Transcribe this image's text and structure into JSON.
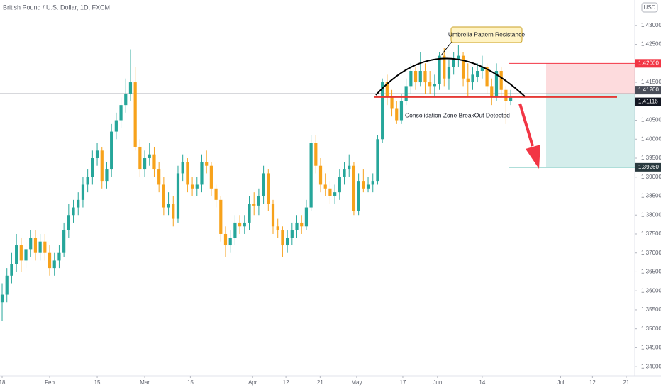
{
  "chart_data": {
    "type": "candlestick",
    "title": "British Pound / U.S. Dollar, 1D, FXCM",
    "currency": "USD",
    "up_color": "#26a69a",
    "down_color": "#f7a21b",
    "ylim": [
      1.3376,
      1.4367
    ],
    "yticks": [
      {
        "value": 1.43,
        "label": "1.43000"
      },
      {
        "value": 1.425,
        "label": "1.42500"
      },
      {
        "value": 1.415,
        "label": "1.41500"
      },
      {
        "value": 1.405,
        "label": "1.40500"
      },
      {
        "value": 1.4,
        "label": "1.40000"
      },
      {
        "value": 1.395,
        "label": "1.39500"
      },
      {
        "value": 1.39,
        "label": "1.39000"
      },
      {
        "value": 1.385,
        "label": "1.38500"
      },
      {
        "value": 1.38,
        "label": "1.38000"
      },
      {
        "value": 1.375,
        "label": "1.37500"
      },
      {
        "value": 1.37,
        "label": "1.37000"
      },
      {
        "value": 1.365,
        "label": "1.36500"
      },
      {
        "value": 1.36,
        "label": "1.36000"
      },
      {
        "value": 1.355,
        "label": "1.35500"
      },
      {
        "value": 1.35,
        "label": "1.35000"
      },
      {
        "value": 1.345,
        "label": "1.34500"
      },
      {
        "value": 1.34,
        "label": "1.34000"
      }
    ],
    "xlim": [
      -0.45,
      133.1
    ],
    "xticks": [
      {
        "value": 0,
        "label": "18"
      },
      {
        "value": 10,
        "label": "Feb"
      },
      {
        "value": 20,
        "label": "15"
      },
      {
        "value": 30,
        "label": "Mar"
      },
      {
        "value": 39.6,
        "label": "15"
      },
      {
        "value": 52.7,
        "label": "Apr"
      },
      {
        "value": 59.7,
        "label": "12"
      },
      {
        "value": 66.9,
        "label": "21"
      },
      {
        "value": 74.6,
        "label": "May"
      },
      {
        "value": 84.3,
        "label": "17"
      },
      {
        "value": 91.6,
        "label": "Jun"
      },
      {
        "value": 101,
        "label": "14"
      },
      {
        "value": 117.5,
        "label": "Jul"
      },
      {
        "value": 124.2,
        "label": "12"
      },
      {
        "value": 131.3,
        "label": "21"
      }
    ],
    "grid": false,
    "ohlc": [
      [
        1.357,
        1.362,
        1.352,
        1.359
      ],
      [
        1.359,
        1.366,
        1.357,
        1.364
      ],
      [
        1.364,
        1.37,
        1.362,
        1.367
      ],
      [
        1.367,
        1.375,
        1.365,
        1.372
      ],
      [
        1.372,
        1.374,
        1.365,
        1.368
      ],
      [
        1.368,
        1.373,
        1.366,
        1.371
      ],
      [
        1.371,
        1.376,
        1.369,
        1.374
      ],
      [
        1.374,
        1.376,
        1.368,
        1.37
      ],
      [
        1.37,
        1.375,
        1.368,
        1.373
      ],
      [
        1.373,
        1.375,
        1.368,
        1.37
      ],
      [
        1.37,
        1.372,
        1.364,
        1.366
      ],
      [
        1.366,
        1.37,
        1.364,
        1.368
      ],
      [
        1.368,
        1.372,
        1.366,
        1.37
      ],
      [
        1.37,
        1.378,
        1.369,
        1.376
      ],
      [
        1.376,
        1.383,
        1.374,
        1.38
      ],
      [
        1.38,
        1.384,
        1.378,
        1.382
      ],
      [
        1.382,
        1.386,
        1.38,
        1.384
      ],
      [
        1.384,
        1.39,
        1.382,
        1.388
      ],
      [
        1.388,
        1.392,
        1.386,
        1.39
      ],
      [
        1.39,
        1.397,
        1.388,
        1.395
      ],
      [
        1.395,
        1.399,
        1.393,
        1.397
      ],
      [
        1.397,
        1.398,
        1.387,
        1.389
      ],
      [
        1.389,
        1.394,
        1.387,
        1.392
      ],
      [
        1.392,
        1.404,
        1.39,
        1.402
      ],
      [
        1.402,
        1.407,
        1.4,
        1.405
      ],
      [
        1.405,
        1.411,
        1.403,
        1.409
      ],
      [
        1.409,
        1.416,
        1.407,
        1.412
      ],
      [
        1.412,
        1.4237,
        1.41,
        1.415
      ],
      [
        1.415,
        1.419,
        1.397,
        1.398
      ],
      [
        1.398,
        1.4,
        1.39,
        1.392
      ],
      [
        1.392,
        1.397,
        1.39,
        1.395
      ],
      [
        1.395,
        1.399,
        1.393,
        1.396
      ],
      [
        1.396,
        1.398,
        1.39,
        1.392
      ],
      [
        1.392,
        1.394,
        1.386,
        1.388
      ],
      [
        1.388,
        1.39,
        1.38,
        1.382
      ],
      [
        1.382,
        1.386,
        1.38,
        1.383
      ],
      [
        1.383,
        1.385,
        1.377,
        1.379
      ],
      [
        1.379,
        1.393,
        1.378,
        1.391
      ],
      [
        1.391,
        1.396,
        1.389,
        1.394
      ],
      [
        1.394,
        1.395,
        1.386,
        1.388
      ],
      [
        1.388,
        1.39,
        1.385,
        1.387
      ],
      [
        1.387,
        1.39,
        1.385,
        1.388
      ],
      [
        1.388,
        1.396,
        1.386,
        1.394
      ],
      [
        1.394,
        1.397,
        1.391,
        1.393
      ],
      [
        1.393,
        1.394,
        1.385,
        1.387
      ],
      [
        1.387,
        1.388,
        1.382,
        1.384
      ],
      [
        1.384,
        1.385,
        1.373,
        1.375
      ],
      [
        1.375,
        1.377,
        1.369,
        1.372
      ],
      [
        1.372,
        1.376,
        1.37,
        1.374
      ],
      [
        1.374,
        1.38,
        1.372,
        1.378
      ],
      [
        1.378,
        1.38,
        1.375,
        1.377
      ],
      [
        1.377,
        1.38,
        1.375,
        1.378
      ],
      [
        1.378,
        1.385,
        1.376,
        1.383
      ],
      [
        1.383,
        1.386,
        1.38,
        1.3825
      ],
      [
        1.3825,
        1.387,
        1.38,
        1.385
      ],
      [
        1.385,
        1.393,
        1.383,
        1.391
      ],
      [
        1.391,
        1.392,
        1.381,
        1.383
      ],
      [
        1.383,
        1.384,
        1.375,
        1.377
      ],
      [
        1.377,
        1.379,
        1.374,
        1.376
      ],
      [
        1.376,
        1.377,
        1.369,
        1.372
      ],
      [
        1.372,
        1.376,
        1.37,
        1.374
      ],
      [
        1.374,
        1.378,
        1.372,
        1.376
      ],
      [
        1.376,
        1.38,
        1.374,
        1.378
      ],
      [
        1.378,
        1.38,
        1.375,
        1.377
      ],
      [
        1.377,
        1.384,
        1.376,
        1.382
      ],
      [
        1.382,
        1.401,
        1.381,
        1.399
      ],
      [
        1.399,
        1.401,
        1.391,
        1.393
      ],
      [
        1.393,
        1.395,
        1.386,
        1.388
      ],
      [
        1.388,
        1.391,
        1.385,
        1.387
      ],
      [
        1.387,
        1.389,
        1.383,
        1.385
      ],
      [
        1.385,
        1.388,
        1.383,
        1.386
      ],
      [
        1.386,
        1.392,
        1.384,
        1.39
      ],
      [
        1.39,
        1.394,
        1.388,
        1.392
      ],
      [
        1.392,
        1.396,
        1.39,
        1.393
      ],
      [
        1.393,
        1.394,
        1.38,
        1.381
      ],
      [
        1.381,
        1.391,
        1.38,
        1.389
      ],
      [
        1.389,
        1.392,
        1.386,
        1.387
      ],
      [
        1.387,
        1.39,
        1.386,
        1.388
      ],
      [
        1.388,
        1.391,
        1.386,
        1.389
      ],
      [
        1.389,
        1.401,
        1.388,
        1.4
      ],
      [
        1.4,
        1.416,
        1.399,
        1.415
      ],
      [
        1.415,
        1.417,
        1.409,
        1.411
      ],
      [
        1.411,
        1.413,
        1.406,
        1.408
      ],
      [
        1.408,
        1.41,
        1.404,
        1.405
      ],
      [
        1.405,
        1.412,
        1.404,
        1.41
      ],
      [
        1.41,
        1.416,
        1.409,
        1.414
      ],
      [
        1.414,
        1.42,
        1.412,
        1.418
      ],
      [
        1.418,
        1.419,
        1.413,
        1.415
      ],
      [
        1.415,
        1.423,
        1.414,
        1.418
      ],
      [
        1.418,
        1.42,
        1.412,
        1.415
      ],
      [
        1.415,
        1.418,
        1.412,
        1.414
      ],
      [
        1.414,
        1.417,
        1.411,
        1.4145
      ],
      [
        1.4145,
        1.423,
        1.413,
        1.422
      ],
      [
        1.422,
        1.424,
        1.414,
        1.416
      ],
      [
        1.416,
        1.421,
        1.413,
        1.419
      ],
      [
        1.419,
        1.423,
        1.417,
        1.421
      ],
      [
        1.421,
        1.4249,
        1.419,
        1.422
      ],
      [
        1.422,
        1.423,
        1.414,
        1.416
      ],
      [
        1.416,
        1.42,
        1.411,
        1.415
      ],
      [
        1.415,
        1.419,
        1.413,
        1.417
      ],
      [
        1.4165,
        1.42,
        1.415,
        1.418
      ],
      [
        1.418,
        1.422,
        1.416,
        1.419
      ],
      [
        1.419,
        1.42,
        1.412,
        1.414
      ],
      [
        1.414,
        1.416,
        1.409,
        1.411
      ],
      [
        1.411,
        1.42,
        1.41,
        1.418
      ],
      [
        1.418,
        1.419,
        1.411,
        1.413
      ],
      [
        1.413,
        1.414,
        1.404,
        1.41
      ],
      [
        1.41,
        1.413,
        1.409,
        1.4112
      ]
    ],
    "position": {
      "stop": {
        "value": 1.42,
        "label": "1.42000"
      },
      "entry": {
        "value": 1.412,
        "label": "1.41200"
      },
      "target": {
        "value": 1.3926,
        "label": "1.39260"
      }
    },
    "last_price": {
      "value": 1.41116,
      "label": "1.41116"
    },
    "annotations": [
      "Umbrella Pattern Resistance",
      "Consolidation Zone BreakOut Detected"
    ]
  }
}
